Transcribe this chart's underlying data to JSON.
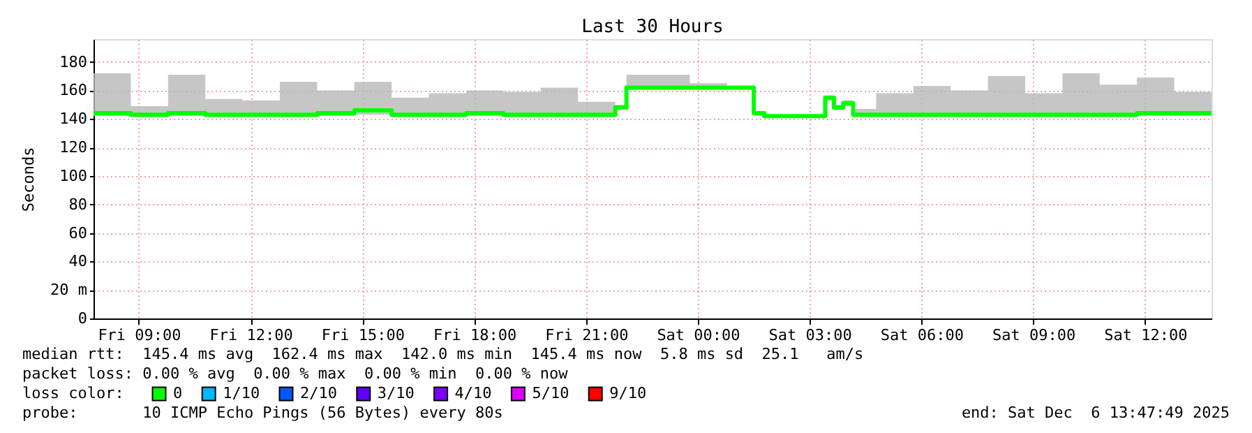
{
  "chart_data": {
    "type": "step",
    "title": "Last 30 Hours",
    "ylabel": "Seconds",
    "x": [
      "2025-12-05T07:47",
      "2025-12-05T08:47",
      "2025-12-05T09:47",
      "2025-12-05T10:47",
      "2025-12-05T11:47",
      "2025-12-05T12:47",
      "2025-12-05T13:47",
      "2025-12-05T14:47",
      "2025-12-05T15:47",
      "2025-12-05T16:47",
      "2025-12-05T17:47",
      "2025-12-05T18:47",
      "2025-12-05T19:47",
      "2025-12-05T20:47",
      "2025-12-05T21:47",
      "2025-12-05T22:05",
      "2025-12-05T22:47",
      "2025-12-05T23:47",
      "2025-12-06T00:47",
      "2025-12-06T01:30",
      "2025-12-06T01:47",
      "2025-12-06T02:47",
      "2025-12-06T03:25",
      "2025-12-06T03:39",
      "2025-12-06T03:54",
      "2025-12-06T04:10",
      "2025-12-06T04:47",
      "2025-12-06T05:47",
      "2025-12-06T06:47",
      "2025-12-06T07:47",
      "2025-12-06T08:47",
      "2025-12-06T09:47",
      "2025-12-06T10:47",
      "2025-12-06T11:47",
      "2025-12-06T12:47",
      "2025-12-06T13:47"
    ],
    "series": [
      {
        "name": "0",
        "color": "#00ff00",
        "values": [
          144,
          143,
          144,
          143,
          143,
          143,
          144,
          146,
          143,
          143,
          144,
          143,
          143,
          143,
          148,
          162,
          162,
          162,
          162,
          144,
          142,
          142,
          155,
          148,
          151,
          143,
          143,
          143,
          143,
          143,
          143,
          143,
          143,
          144,
          144,
          144
        ],
        "lower": [
          142,
          141,
          142,
          141,
          141,
          141,
          142,
          143,
          141,
          141,
          142,
          141,
          141,
          141,
          147,
          161,
          161,
          161,
          161,
          142,
          141,
          141,
          153,
          146,
          149,
          141,
          141,
          141,
          141,
          141,
          141,
          141,
          141,
          142,
          142,
          142
        ],
        "upper": [
          172,
          149,
          171,
          154,
          153,
          166,
          160,
          166,
          155,
          158,
          160,
          159,
          162,
          152,
          150,
          171,
          171,
          165,
          163,
          145,
          143,
          143,
          156,
          150,
          153,
          147,
          158,
          163,
          160,
          170,
          158,
          172,
          164,
          169,
          159,
          168
        ]
      },
      {
        "name": "1/10",
        "color": "#00b8ff",
        "values": [
          null,
          null,
          null,
          null,
          null,
          null,
          null,
          null,
          null,
          null,
          null,
          null,
          null,
          null,
          null,
          null,
          null,
          null,
          null,
          null,
          null,
          null,
          null,
          null,
          null,
          null,
          null,
          null,
          null,
          null,
          null,
          null,
          null,
          null,
          null,
          null
        ]
      },
      {
        "name": "2/10",
        "color": "#0059ff",
        "values": [
          null,
          null,
          null,
          null,
          null,
          null,
          null,
          null,
          null,
          null,
          null,
          null,
          null,
          null,
          null,
          null,
          null,
          null,
          null,
          null,
          null,
          null,
          null,
          null,
          null,
          null,
          null,
          null,
          null,
          null,
          null,
          null,
          null,
          null,
          null,
          null
        ]
      },
      {
        "name": "3/10",
        "color": "#5e00ff",
        "values": [
          null,
          null,
          null,
          null,
          null,
          null,
          null,
          null,
          null,
          null,
          null,
          null,
          null,
          null,
          null,
          null,
          null,
          null,
          null,
          null,
          null,
          null,
          null,
          null,
          null,
          null,
          null,
          null,
          null,
          null,
          null,
          null,
          null,
          null,
          null,
          null
        ]
      },
      {
        "name": "4/10",
        "color": "#7e00ff",
        "values": [
          null,
          null,
          null,
          null,
          null,
          null,
          null,
          null,
          null,
          null,
          null,
          null,
          null,
          null,
          null,
          null,
          null,
          null,
          null,
          null,
          null,
          null,
          null,
          null,
          null,
          null,
          null,
          null,
          null,
          null,
          null,
          null,
          null,
          null,
          null,
          null
        ]
      },
      {
        "name": "5/10",
        "color": "#dd00ff",
        "values": [
          null,
          null,
          null,
          null,
          null,
          null,
          null,
          null,
          null,
          null,
          null,
          null,
          null,
          null,
          null,
          null,
          null,
          null,
          null,
          null,
          null,
          null,
          null,
          null,
          null,
          null,
          null,
          null,
          null,
          null,
          null,
          null,
          null,
          null,
          null,
          null
        ]
      },
      {
        "name": "9/10",
        "color": "#ff0000",
        "values": [
          null,
          null,
          null,
          null,
          null,
          null,
          null,
          null,
          null,
          null,
          null,
          null,
          null,
          null,
          null,
          null,
          null,
          null,
          null,
          null,
          null,
          null,
          null,
          null,
          null,
          null,
          null,
          null,
          null,
          null,
          null,
          null,
          null,
          null,
          null,
          null
        ]
      }
    ],
    "xlim": [
      "2025-12-05T07:47",
      "2025-12-06T13:47"
    ],
    "xticks": [
      {
        "value": "2025-12-05T09:00",
        "label": "Fri 09:00"
      },
      {
        "value": "2025-12-05T12:00",
        "label": "Fri 12:00"
      },
      {
        "value": "2025-12-05T15:00",
        "label": "Fri 15:00"
      },
      {
        "value": "2025-12-05T18:00",
        "label": "Fri 18:00"
      },
      {
        "value": "2025-12-05T21:00",
        "label": "Fri 21:00"
      },
      {
        "value": "2025-12-06T00:00",
        "label": "Sat 00:00"
      },
      {
        "value": "2025-12-06T03:00",
        "label": "Sat 03:00"
      },
      {
        "value": "2025-12-06T06:00",
        "label": "Sat 06:00"
      },
      {
        "value": "2025-12-06T09:00",
        "label": "Sat 09:00"
      },
      {
        "value": "2025-12-06T12:00",
        "label": "Sat 12:00"
      }
    ],
    "ylim": [
      0,
      196
    ],
    "yticks": [
      0,
      {
        "value": 20,
        "label": "20 m"
      },
      40,
      60,
      80,
      100,
      120,
      140,
      160,
      180
    ],
    "grid": true,
    "legend": "bottom",
    "legend_title": "loss color:",
    "annotations": [
      "median rtt:  145.4 ms avg  162.4 ms max  142.0 ms min  145.4 ms now  5.8 ms sd  25.1   am/s",
      "packet loss: 0.00 % avg  0.00 % max  0.00 % min  0.00 % now",
      "probe:       10 ICMP Echo Pings (56 Bytes) every 80s",
      "end: Sat Dec  6 13:47:49 2025"
    ]
  }
}
